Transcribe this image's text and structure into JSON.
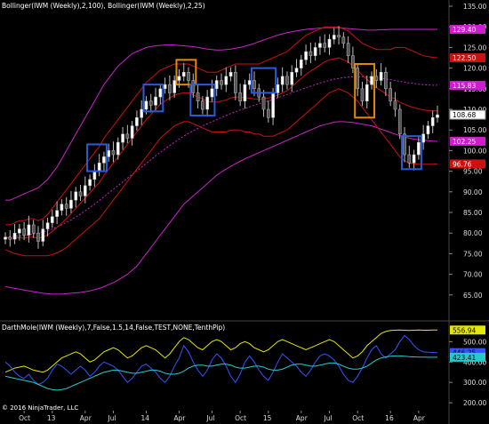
{
  "chart_data": [
    {
      "type": "candlestick",
      "title": "Bollinger(IWM (Weekly),2,100), Bollinger(IWM (Weekly),2,25)",
      "ylim": [
        60,
        135
      ],
      "y_ticks": [
        65,
        70,
        75,
        80,
        85,
        90,
        95,
        100,
        105,
        110,
        115,
        120,
        125,
        130,
        135
      ],
      "grid": false,
      "price_labels": [
        {
          "value": 129.4,
          "text": "129.40",
          "color": "#d11ad1"
        },
        {
          "value": 122.5,
          "text": "122.50",
          "color": "#cc1111"
        },
        {
          "value": 115.83,
          "text": "115.83",
          "color": "#d11ad1"
        },
        {
          "value": 108.68,
          "text": "108.68",
          "color": "#000000"
        },
        {
          "value": 102.25,
          "text": "102.25",
          "color": "#d11ad1"
        },
        {
          "value": 96.76,
          "text": "96.76",
          "color": "#cc1111"
        }
      ],
      "colors": {
        "up": "#ffffff",
        "down": "#555555",
        "bb100": "#cc22cc",
        "bb25": "#cc1111",
        "highlight_blue": "#2a5bd8",
        "highlight_orange": "#e08a00"
      },
      "closes": [
        79.0,
        78.5,
        80.0,
        81.0,
        79.5,
        82.0,
        80.0,
        78.0,
        81.0,
        82.5,
        84.0,
        85.5,
        87.0,
        86.0,
        88.0,
        90.0,
        89.0,
        91.5,
        93.0,
        95.0,
        97.0,
        98.5,
        100.0,
        99.0,
        102.0,
        104.0,
        103.0,
        106.0,
        108.0,
        110.0,
        112.0,
        111.0,
        113.0,
        115.0,
        116.0,
        114.0,
        117.0,
        118.0,
        119.0,
        117.0,
        114.0,
        112.0,
        110.0,
        113.0,
        115.0,
        117.0,
        116.0,
        118.0,
        119.0,
        114.0,
        112.0,
        116.0,
        117.0,
        115.0,
        113.0,
        110.0,
        108.0,
        114.0,
        116.0,
        118.0,
        116.0,
        119.0,
        120.0,
        122.0,
        124.0,
        123.0,
        125.0,
        126.0,
        125.0,
        127.0,
        128.0,
        127.5,
        126.0,
        123.0,
        120.0,
        115.0,
        112.0,
        116.0,
        118.0,
        117.0,
        119.0,
        115.0,
        112.0,
        110.0,
        104.0,
        99.0,
        97.0,
        99.0,
        102.0,
        104.0,
        106.0,
        108.0,
        108.68
      ],
      "bb100_upper": [
        88.0,
        88.0,
        88.5,
        89.0,
        89.5,
        90.0,
        90.5,
        91.0,
        92.0,
        93.0,
        94.5,
        96.0,
        98.0,
        100.0,
        102.0,
        104.0,
        106.0,
        108.0,
        110.0,
        112.0,
        114.0,
        116.0,
        117.5,
        119.0,
        120.5,
        121.5,
        122.5,
        123.5,
        124.0,
        124.5,
        125.0,
        125.2,
        125.4,
        125.5,
        125.6,
        125.6,
        125.6,
        125.5,
        125.4,
        125.3,
        125.2,
        125.0,
        124.8,
        124.6,
        124.5,
        124.4,
        124.4,
        124.5,
        124.6,
        124.8,
        125.0,
        125.3,
        125.6,
        126.0,
        126.4,
        126.8,
        127.2,
        127.6,
        128.0,
        128.3,
        128.6,
        128.8,
        129.0,
        129.2,
        129.4,
        129.5,
        129.6,
        129.7,
        129.8,
        129.8,
        129.8,
        129.8,
        129.7,
        129.6,
        129.5,
        129.4,
        129.3,
        129.2,
        129.2,
        129.2,
        129.3,
        129.3,
        129.4,
        129.4,
        129.4,
        129.4,
        129.4,
        129.4,
        129.4,
        129.4,
        129.4,
        129.4,
        129.4
      ],
      "bb100_mid": [
        79.0,
        79.1,
        79.2,
        79.3,
        79.4,
        79.6,
        79.8,
        80.0,
        80.3,
        80.6,
        81.0,
        81.5,
        82.0,
        82.6,
        83.2,
        83.9,
        84.6,
        85.4,
        86.2,
        87.0,
        87.9,
        88.8,
        89.7,
        90.6,
        91.5,
        92.4,
        93.3,
        94.2,
        95.1,
        96.0,
        96.9,
        97.8,
        98.7,
        99.6,
        100.4,
        101.2,
        102.0,
        102.8,
        103.5,
        104.2,
        104.8,
        105.4,
        106.0,
        106.5,
        107.0,
        107.5,
        108.0,
        108.5,
        109.0,
        109.4,
        109.8,
        110.2,
        110.6,
        111.0,
        111.4,
        111.7,
        112.0,
        112.4,
        112.8,
        113.2,
        113.6,
        114.0,
        114.4,
        114.8,
        115.2,
        115.6,
        116.0,
        116.4,
        116.7,
        117.0,
        117.3,
        117.5,
        117.7,
        117.8,
        117.9,
        117.9,
        117.9,
        117.8,
        117.7,
        117.6,
        117.5,
        117.4,
        117.2,
        117.0,
        116.8,
        116.6,
        116.4,
        116.3,
        116.1,
        116.0,
        115.9,
        115.85,
        115.83
      ],
      "bb100_lower": [
        67.0,
        66.8,
        66.6,
        66.4,
        66.2,
        66.0,
        65.8,
        65.6,
        65.4,
        65.3,
        65.2,
        65.2,
        65.2,
        65.3,
        65.4,
        65.5,
        65.6,
        65.8,
        66.0,
        66.3,
        66.6,
        67.0,
        67.5,
        68.0,
        68.6,
        69.3,
        70.0,
        71.0,
        72.0,
        73.5,
        75.0,
        76.5,
        78.0,
        79.5,
        81.0,
        82.5,
        84.0,
        85.5,
        87.0,
        88.0,
        89.0,
        90.0,
        91.0,
        92.0,
        93.0,
        94.0,
        94.8,
        95.5,
        96.2,
        96.8,
        97.4,
        98.0,
        98.5,
        99.0,
        99.5,
        100.0,
        100.5,
        101.0,
        101.5,
        102.0,
        102.5,
        103.0,
        103.5,
        104.0,
        104.5,
        105.0,
        105.5,
        106.0,
        106.3,
        106.6,
        106.9,
        107.0,
        107.0,
        106.9,
        106.8,
        106.6,
        106.4,
        106.2,
        106.0,
        105.6,
        105.2,
        104.8,
        104.4,
        104.0,
        103.6,
        103.3,
        103.0,
        102.8,
        102.6,
        102.5,
        102.4,
        102.3,
        102.25
      ],
      "bb25_upper": [
        82.0,
        82.0,
        82.5,
        83.0,
        83.0,
        83.5,
        83.5,
        83.0,
        83.5,
        84.5,
        86.0,
        87.5,
        89.0,
        90.5,
        92.0,
        93.5,
        95.0,
        96.5,
        98.0,
        99.5,
        101.0,
        103.0,
        104.5,
        106.0,
        107.5,
        109.0,
        110.5,
        112.0,
        113.5,
        115.0,
        116.5,
        117.5,
        118.5,
        119.5,
        120.0,
        120.5,
        121.0,
        121.0,
        121.0,
        121.0,
        120.5,
        120.0,
        119.5,
        119.0,
        119.0,
        119.0,
        119.5,
        120.0,
        120.5,
        121.0,
        121.0,
        121.0,
        121.0,
        121.0,
        121.0,
        121.5,
        122.0,
        122.5,
        123.0,
        123.5,
        124.0,
        125.0,
        126.0,
        127.0,
        128.0,
        128.5,
        129.0,
        129.5,
        130.0,
        130.0,
        130.0,
        130.0,
        129.5,
        129.0,
        128.0,
        127.0,
        126.0,
        125.5,
        125.0,
        124.5,
        124.5,
        124.5,
        124.5,
        125.0,
        125.0,
        125.0,
        124.5,
        124.0,
        123.5,
        123.0,
        122.8,
        122.6,
        122.5
      ],
      "bb25_lower": [
        76.0,
        75.5,
        75.0,
        74.8,
        74.5,
        74.5,
        74.5,
        74.5,
        74.5,
        74.5,
        74.8,
        75.2,
        75.8,
        76.5,
        77.5,
        78.5,
        79.5,
        80.5,
        81.5,
        82.5,
        83.5,
        85.0,
        86.5,
        88.0,
        89.5,
        91.0,
        92.5,
        94.0,
        95.5,
        97.0,
        98.5,
        100.0,
        101.5,
        103.0,
        104.0,
        105.0,
        106.0,
        106.5,
        107.0,
        107.0,
        106.5,
        106.0,
        105.5,
        105.0,
        104.5,
        104.5,
        104.5,
        104.5,
        105.0,
        105.0,
        105.0,
        104.5,
        104.5,
        104.0,
        104.0,
        103.5,
        103.5,
        103.5,
        104.0,
        104.5,
        105.0,
        106.0,
        107.0,
        108.0,
        109.0,
        110.0,
        111.0,
        112.0,
        113.0,
        114.0,
        114.5,
        115.0,
        114.5,
        114.0,
        113.0,
        112.0,
        110.5,
        109.0,
        107.5,
        106.0,
        104.5,
        103.0,
        101.5,
        100.0,
        98.5,
        97.5,
        97.0,
        96.8,
        96.7,
        96.7,
        96.7,
        96.7,
        96.76
      ],
      "boxes": [
        {
          "color": "blue",
          "from": 18,
          "to": 21,
          "low": 95.0,
          "high": 101.5
        },
        {
          "color": "blue",
          "from": 30,
          "to": 33,
          "low": 109.5,
          "high": 116.0
        },
        {
          "color": "orange",
          "from": 37,
          "to": 40,
          "low": 116.0,
          "high": 122.0
        },
        {
          "color": "blue",
          "from": 40,
          "to": 44,
          "low": 108.5,
          "high": 116.0
        },
        {
          "color": "blue",
          "from": 53,
          "to": 57,
          "low": 114.0,
          "high": 120.0
        },
        {
          "color": "orange",
          "from": 75,
          "to": 78,
          "low": 108.0,
          "high": 121.0
        },
        {
          "color": "blue",
          "from": 85,
          "to": 88,
          "low": 95.5,
          "high": 103.5
        }
      ],
      "x_ticks": [
        {
          "label": "Oct",
          "index": 4
        },
        {
          "label": "13",
          "index": 10
        },
        {
          "label": "Apr",
          "index": 17
        },
        {
          "label": "Jul",
          "index": 23
        },
        {
          "label": "14",
          "index": 30
        },
        {
          "label": "Apr",
          "index": 37
        },
        {
          "label": "Jul",
          "index": 44
        },
        {
          "label": "Oct",
          "index": 50
        },
        {
          "label": "15",
          "index": 56
        },
        {
          "label": "Apr",
          "index": 63
        },
        {
          "label": "Jul",
          "index": 69
        },
        {
          "label": "Oct",
          "index": 75
        },
        {
          "label": "16",
          "index": 82
        },
        {
          "label": "Apr",
          "index": 88
        }
      ]
    },
    {
      "type": "line",
      "title": "DarthMole(IWM (Weekly),7,False,1.5,14,False,TEST,NONE,TenthPip)",
      "ylim": [
        170,
        580
      ],
      "y_ticks": [
        200,
        300,
        400,
        500
      ],
      "price_labels": [
        {
          "value": 556.94,
          "text": "556.94",
          "color": "#e6e600"
        },
        {
          "value": 446.25,
          "text": "446.25",
          "color": "#3355ff"
        },
        {
          "value": 423.41,
          "text": "423.41",
          "color": "#22cccc"
        }
      ],
      "series": [
        {
          "color": "#e6e600",
          "values": [
            350,
            360,
            370,
            375,
            380,
            370,
            360,
            355,
            350,
            360,
            380,
            400,
            420,
            430,
            440,
            450,
            440,
            420,
            400,
            410,
            430,
            450,
            460,
            470,
            460,
            440,
            420,
            430,
            450,
            470,
            480,
            470,
            460,
            440,
            420,
            440,
            470,
            500,
            520,
            510,
            490,
            470,
            460,
            480,
            500,
            510,
            500,
            480,
            460,
            470,
            490,
            500,
            490,
            470,
            460,
            450,
            460,
            480,
            500,
            510,
            500,
            490,
            480,
            470,
            460,
            470,
            480,
            490,
            500,
            510,
            500,
            480,
            460,
            440,
            420,
            430,
            450,
            480,
            500,
            520,
            540,
            550,
            555,
            556,
            557,
            556,
            555,
            556,
            557,
            556,
            556,
            557,
            556.94
          ]
        },
        {
          "color": "#3355ff",
          "values": [
            400,
            380,
            350,
            330,
            320,
            340,
            310,
            290,
            300,
            320,
            360,
            390,
            380,
            360,
            340,
            360,
            380,
            360,
            330,
            350,
            380,
            400,
            390,
            380,
            360,
            330,
            300,
            320,
            350,
            380,
            390,
            370,
            350,
            320,
            300,
            330,
            380,
            420,
            480,
            450,
            400,
            360,
            330,
            360,
            410,
            440,
            420,
            380,
            330,
            300,
            340,
            400,
            430,
            400,
            360,
            330,
            310,
            350,
            400,
            440,
            420,
            400,
            380,
            350,
            330,
            360,
            400,
            430,
            440,
            430,
            410,
            380,
            340,
            310,
            300,
            330,
            370,
            420,
            460,
            480,
            440,
            420,
            440,
            460,
            500,
            530,
            510,
            480,
            460,
            450,
            448,
            447,
            446.25
          ]
        },
        {
          "color": "#22cccc",
          "values": [
            330,
            325,
            320,
            315,
            310,
            305,
            300,
            290,
            280,
            270,
            265,
            262,
            265,
            270,
            280,
            290,
            300,
            310,
            320,
            330,
            340,
            350,
            355,
            360,
            360,
            355,
            350,
            345,
            345,
            350,
            355,
            360,
            360,
            355,
            345,
            340,
            340,
            345,
            355,
            370,
            380,
            385,
            385,
            380,
            380,
            385,
            390,
            390,
            385,
            375,
            370,
            370,
            375,
            380,
            380,
            375,
            365,
            360,
            360,
            365,
            375,
            385,
            390,
            390,
            385,
            380,
            380,
            385,
            390,
            395,
            395,
            390,
            380,
            370,
            365,
            365,
            370,
            380,
            395,
            410,
            420,
            425,
            428,
            430,
            430,
            428,
            426,
            425,
            424,
            424,
            423.5,
            423.4,
            423.41
          ]
        }
      ],
      "x_ticks": [
        {
          "label": "Oct",
          "index": 4
        },
        {
          "label": "13",
          "index": 10
        },
        {
          "label": "Apr",
          "index": 17
        },
        {
          "label": "Jul",
          "index": 23
        },
        {
          "label": "14",
          "index": 30
        },
        {
          "label": "Apr",
          "index": 37
        },
        {
          "label": "Jul",
          "index": 44
        },
        {
          "label": "Oct",
          "index": 50
        },
        {
          "label": "15",
          "index": 56
        },
        {
          "label": "Apr",
          "index": 63
        },
        {
          "label": "Jul",
          "index": 69
        },
        {
          "label": "Oct",
          "index": 75
        },
        {
          "label": "16",
          "index": 82
        },
        {
          "label": "Apr",
          "index": 88
        }
      ]
    }
  ],
  "copyright": "© 2016 NinjaTrader, LLC"
}
